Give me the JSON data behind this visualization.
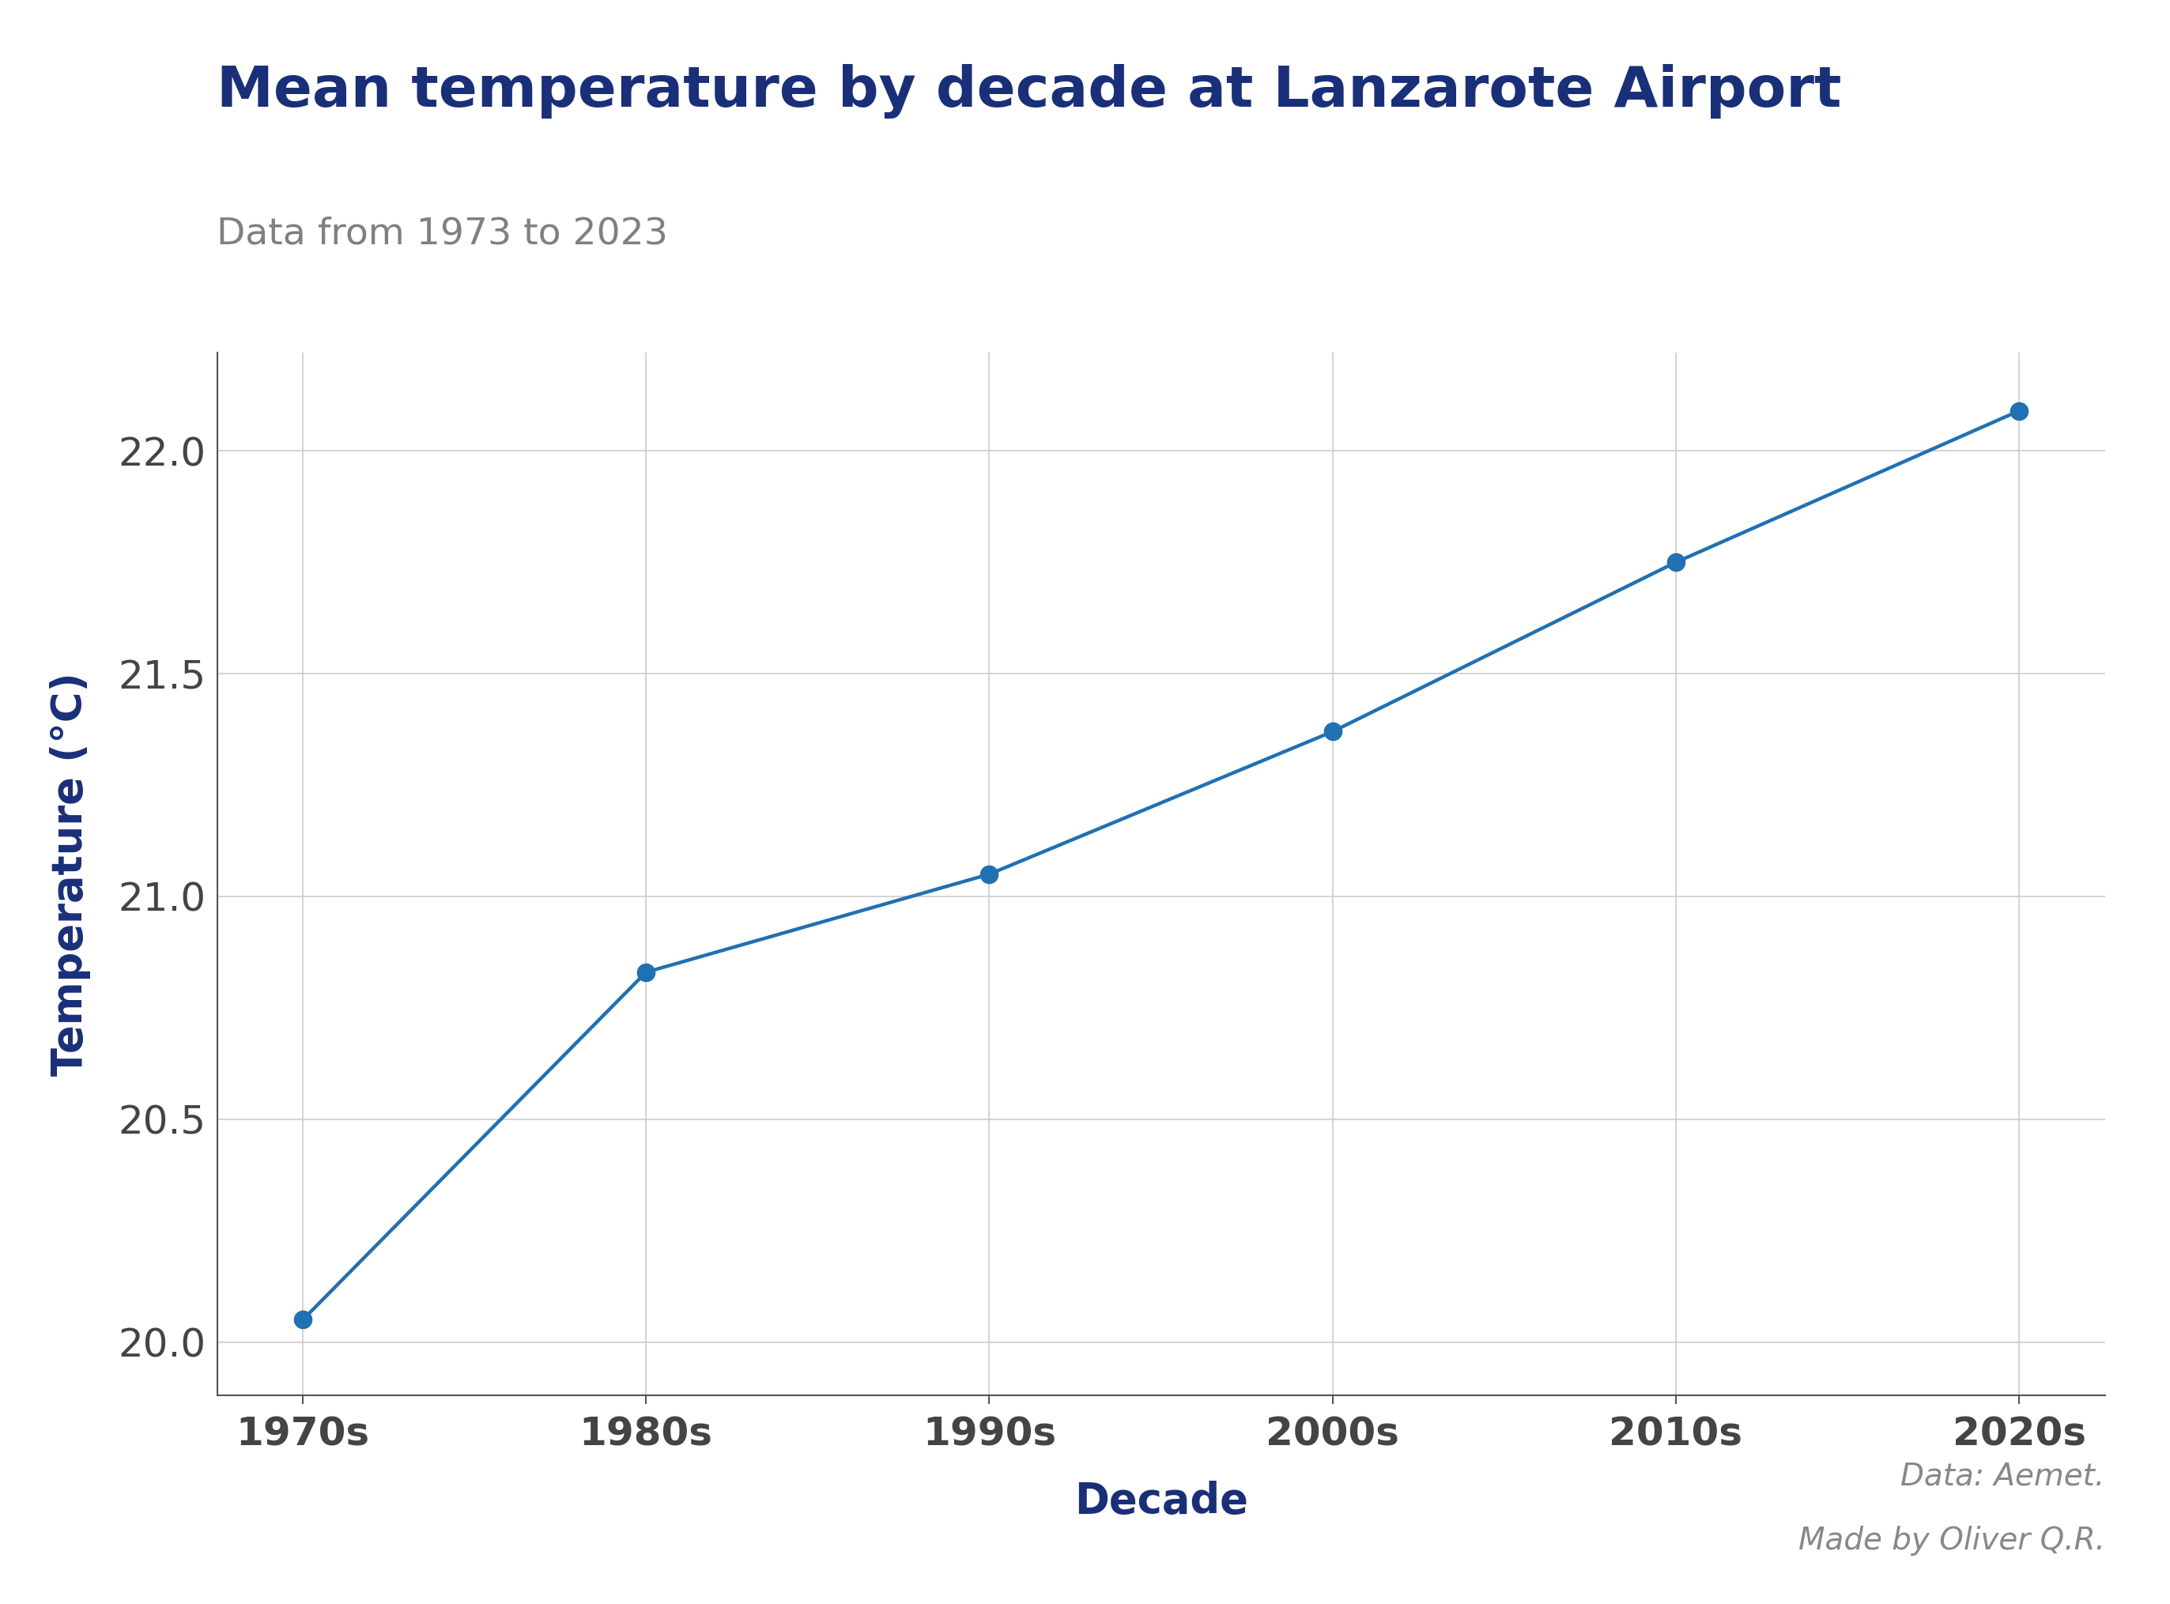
{
  "title": "Mean temperature by decade at Lanzarote Airport",
  "subtitle": "Data from 1973 to 2023",
  "xlabel": "Decade",
  "ylabel": "Temperature (°C)",
  "categories": [
    "1970s",
    "1980s",
    "1990s",
    "2000s",
    "2010s",
    "2020s"
  ],
  "x_values": [
    0,
    1,
    2,
    3,
    4,
    5
  ],
  "y_values": [
    20.05,
    20.83,
    21.05,
    21.37,
    21.75,
    22.09
  ],
  "ylim": [
    19.88,
    22.22
  ],
  "yticks": [
    20.0,
    20.5,
    21.0,
    21.5,
    22.0
  ],
  "xlim": [
    -0.25,
    5.25
  ],
  "line_color": "#2070b4",
  "marker_color": "#2070b4",
  "marker_size": 16,
  "line_width": 3.2,
  "title_color": "#1a2f7a",
  "subtitle_color": "#808080",
  "xlabel_color": "#1a2f7a",
  "ylabel_color": "#1a2f7a",
  "tick_label_color": "#444444",
  "grid_color": "#cccccc",
  "background_color": "#ffffff",
  "caption_line1": "Data: Aemet.",
  "caption_line2": "Made by Oliver Q.R.",
  "caption_color": "#888888",
  "title_fontsize": 52,
  "subtitle_fontsize": 34,
  "axis_label_fontsize": 38,
  "tick_fontsize": 36,
  "caption_fontsize": 28
}
